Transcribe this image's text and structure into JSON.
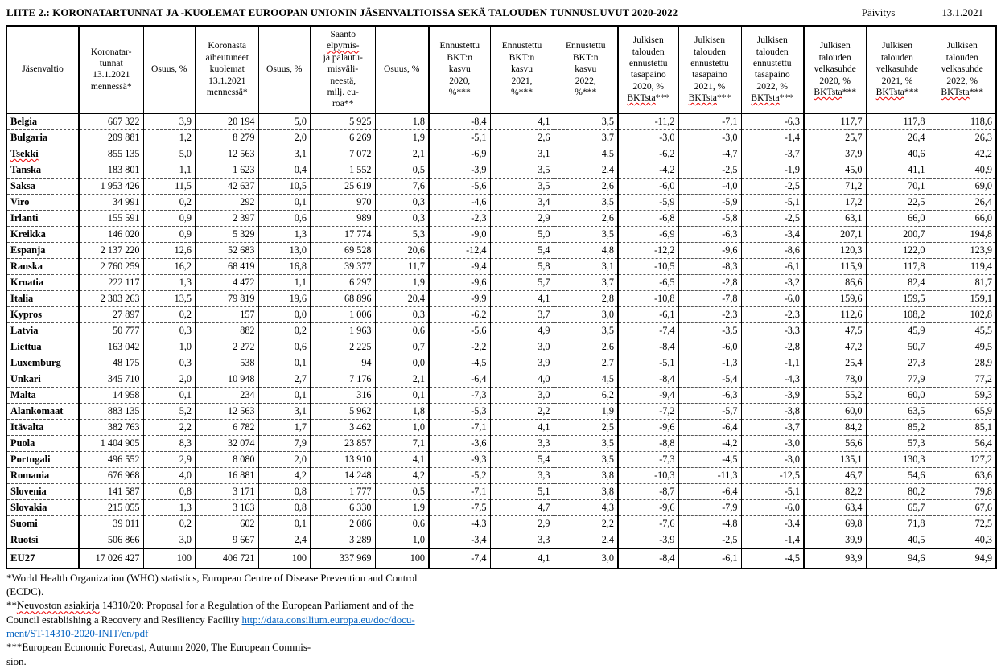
{
  "page": {
    "title": "LIITE 2.: KORONATARTUNNAT JA -KUOLEMAT EUROOPAN UNIONIN JÄSENVALTIOISSA SEKÄ TALOUDEN TUNNUSLUVUT 2020-2022",
    "update_label": "Päivitys",
    "update_date": "13.1.2021"
  },
  "table": {
    "headers": [
      [
        {
          "t": "Jäsenvaltio"
        }
      ],
      [
        {
          "t": "Koronatar-",
          "br": 1
        },
        {
          "t": "tunnat",
          "br": 1
        },
        {
          "t": "13.1.2021",
          "br": 1
        },
        {
          "t": "mennessä*"
        }
      ],
      [
        {
          "t": "Osuus, %"
        }
      ],
      [
        {
          "t": "Koronasta",
          "br": 1
        },
        {
          "t": "aiheutuneet",
          "br": 1
        },
        {
          "t": "kuolemat",
          "br": 1
        },
        {
          "t": "13.1.2021",
          "br": 1
        },
        {
          "t": "mennessä*"
        }
      ],
      [
        {
          "t": "Osuus, %"
        }
      ],
      [
        {
          "t": "Saanto",
          "br": 1
        },
        {
          "t": "elpymis-",
          "sq": 1,
          "br": 1
        },
        {
          "t": "ja palautu-",
          "br": 1
        },
        {
          "t": "misväli-",
          "br": 1
        },
        {
          "t": "neestä,",
          "br": 1
        },
        {
          "t": "milj. eu-",
          "br": 1
        },
        {
          "t": "roa**"
        }
      ],
      [
        {
          "t": "Osuus, %"
        }
      ],
      [
        {
          "t": "Ennustettu",
          "br": 1
        },
        {
          "t": "BKT:n",
          "br": 1
        },
        {
          "t": "kasvu",
          "br": 1
        },
        {
          "t": "2020,",
          "br": 1
        },
        {
          "t": "%***"
        }
      ],
      [
        {
          "t": "Ennustettu",
          "br": 1
        },
        {
          "t": "BKT:n",
          "br": 1
        },
        {
          "t": "kasvu",
          "br": 1
        },
        {
          "t": "2021,",
          "br": 1
        },
        {
          "t": "%***"
        }
      ],
      [
        {
          "t": "Ennustettu",
          "br": 1
        },
        {
          "t": "BKT:n",
          "br": 1
        },
        {
          "t": "kasvu",
          "br": 1
        },
        {
          "t": "2022,",
          "br": 1
        },
        {
          "t": "%***"
        }
      ],
      [
        {
          "t": "Julkisen",
          "br": 1
        },
        {
          "t": "talouden",
          "br": 1
        },
        {
          "t": "ennustettu",
          "br": 1
        },
        {
          "t": "tasapaino",
          "br": 1
        },
        {
          "t": "2020, %",
          "br": 1
        },
        {
          "t": "BKTsta",
          "sq": 1
        },
        {
          "t": "***"
        }
      ],
      [
        {
          "t": "Julkisen",
          "br": 1
        },
        {
          "t": "talouden",
          "br": 1
        },
        {
          "t": "ennustettu",
          "br": 1
        },
        {
          "t": "tasapaino",
          "br": 1
        },
        {
          "t": "2021, %",
          "br": 1
        },
        {
          "t": "BKTsta",
          "sq": 1
        },
        {
          "t": "***"
        }
      ],
      [
        {
          "t": "Julkisen",
          "br": 1
        },
        {
          "t": "talouden",
          "br": 1
        },
        {
          "t": "ennustettu",
          "br": 1
        },
        {
          "t": "tasapaino",
          "br": 1
        },
        {
          "t": "2022, %",
          "br": 1
        },
        {
          "t": "BKTsta",
          "sq": 1
        },
        {
          "t": "***"
        }
      ],
      [
        {
          "t": "Julkisen",
          "br": 1
        },
        {
          "t": "talouden",
          "br": 1
        },
        {
          "t": "velkasuhde",
          "br": 1
        },
        {
          "t": "2020, %",
          "br": 1
        },
        {
          "t": "BKTsta",
          "sq": 1
        },
        {
          "t": "***"
        }
      ],
      [
        {
          "t": "Julkisen",
          "br": 1
        },
        {
          "t": "talouden",
          "br": 1
        },
        {
          "t": "velkasuhde",
          "br": 1
        },
        {
          "t": "2021, %",
          "br": 1
        },
        {
          "t": "BKTsta",
          "sq": 1
        },
        {
          "t": "***"
        }
      ],
      [
        {
          "t": "Julkisen",
          "br": 1
        },
        {
          "t": "talouden",
          "br": 1
        },
        {
          "t": "velkasuhde",
          "br": 1
        },
        {
          "t": "2022, %",
          "br": 1
        },
        {
          "t": "BKTsta",
          "sq": 1
        },
        {
          "t": "***"
        }
      ]
    ],
    "rows": [
      {
        "name": "Belgia",
        "values": [
          "667 322",
          "3,9",
          "20 194",
          "5,0",
          "5 925",
          "1,8",
          "-8,4",
          "4,1",
          "3,5",
          "-11,2",
          "-7,1",
          "-6,3",
          "117,7",
          "117,8",
          "118,6"
        ]
      },
      {
        "name": "Bulgaria",
        "values": [
          "209 881",
          "1,2",
          "8 279",
          "2,0",
          "6 269",
          "1,9",
          "-5,1",
          "2,6",
          "3,7",
          "-3,0",
          "-3,0",
          "-1,4",
          "25,7",
          "26,4",
          "26,3"
        ]
      },
      {
        "name": "Tsekki",
        "sq": 1,
        "values": [
          "855 135",
          "5,0",
          "12 563",
          "3,1",
          "7 072",
          "2,1",
          "-6,9",
          "3,1",
          "4,5",
          "-6,2",
          "-4,7",
          "-3,7",
          "37,9",
          "40,6",
          "42,2"
        ]
      },
      {
        "name": "Tanska",
        "values": [
          "183 801",
          "1,1",
          "1 623",
          "0,4",
          "1 552",
          "0,5",
          "-3,9",
          "3,5",
          "2,4",
          "-4,2",
          "-2,5",
          "-1,9",
          "45,0",
          "41,1",
          "40,9"
        ]
      },
      {
        "name": "Saksa",
        "values": [
          "1 953 426",
          "11,5",
          "42 637",
          "10,5",
          "25 619",
          "7,6",
          "-5,6",
          "3,5",
          "2,6",
          "-6,0",
          "-4,0",
          "-2,5",
          "71,2",
          "70,1",
          "69,0"
        ]
      },
      {
        "name": "Viro",
        "values": [
          "34 991",
          "0,2",
          "292",
          "0,1",
          "970",
          "0,3",
          "-4,6",
          "3,4",
          "3,5",
          "-5,9",
          "-5,9",
          "-5,1",
          "17,2",
          "22,5",
          "26,4"
        ]
      },
      {
        "name": "Irlanti",
        "values": [
          "155 591",
          "0,9",
          "2 397",
          "0,6",
          "989",
          "0,3",
          "-2,3",
          "2,9",
          "2,6",
          "-6,8",
          "-5,8",
          "-2,5",
          "63,1",
          "66,0",
          "66,0"
        ]
      },
      {
        "name": "Kreikka",
        "values": [
          "146 020",
          "0,9",
          "5 329",
          "1,3",
          "17 774",
          "5,3",
          "-9,0",
          "5,0",
          "3,5",
          "-6,9",
          "-6,3",
          "-3,4",
          "207,1",
          "200,7",
          "194,8"
        ]
      },
      {
        "name": "Espanja",
        "values": [
          "2 137 220",
          "12,6",
          "52 683",
          "13,0",
          "69 528",
          "20,6",
          "-12,4",
          "5,4",
          "4,8",
          "-12,2",
          "-9,6",
          "-8,6",
          "120,3",
          "122,0",
          "123,9"
        ]
      },
      {
        "name": "Ranska",
        "values": [
          "2 760 259",
          "16,2",
          "68 419",
          "16,8",
          "39 377",
          "11,7",
          "-9,4",
          "5,8",
          "3,1",
          "-10,5",
          "-8,3",
          "-6,1",
          "115,9",
          "117,8",
          "119,4"
        ]
      },
      {
        "name": "Kroatia",
        "values": [
          "222 117",
          "1,3",
          "4 472",
          "1,1",
          "6 297",
          "1,9",
          "-9,6",
          "5,7",
          "3,7",
          "-6,5",
          "-2,8",
          "-3,2",
          "86,6",
          "82,4",
          "81,7"
        ]
      },
      {
        "name": "Italia",
        "values": [
          "2 303 263",
          "13,5",
          "79 819",
          "19,6",
          "68 896",
          "20,4",
          "-9,9",
          "4,1",
          "2,8",
          "-10,8",
          "-7,8",
          "-6,0",
          "159,6",
          "159,5",
          "159,1"
        ]
      },
      {
        "name": "Kypros",
        "values": [
          "27 897",
          "0,2",
          "157",
          "0,0",
          "1 006",
          "0,3",
          "-6,2",
          "3,7",
          "3,0",
          "-6,1",
          "-2,3",
          "-2,3",
          "112,6",
          "108,2",
          "102,8"
        ]
      },
      {
        "name": "Latvia",
        "values": [
          "50 777",
          "0,3",
          "882",
          "0,2",
          "1 963",
          "0,6",
          "-5,6",
          "4,9",
          "3,5",
          "-7,4",
          "-3,5",
          "-3,3",
          "47,5",
          "45,9",
          "45,5"
        ]
      },
      {
        "name": "Liettua",
        "values": [
          "163 042",
          "1,0",
          "2 272",
          "0,6",
          "2 225",
          "0,7",
          "-2,2",
          "3,0",
          "2,6",
          "-8,4",
          "-6,0",
          "-2,8",
          "47,2",
          "50,7",
          "49,5"
        ]
      },
      {
        "name": "Luxemburg",
        "values": [
          "48 175",
          "0,3",
          "538",
          "0,1",
          "94",
          "0,0",
          "-4,5",
          "3,9",
          "2,7",
          "-5,1",
          "-1,3",
          "-1,1",
          "25,4",
          "27,3",
          "28,9"
        ]
      },
      {
        "name": "Unkari",
        "values": [
          "345 710",
          "2,0",
          "10 948",
          "2,7",
          "7 176",
          "2,1",
          "-6,4",
          "4,0",
          "4,5",
          "-8,4",
          "-5,4",
          "-4,3",
          "78,0",
          "77,9",
          "77,2"
        ]
      },
      {
        "name": "Malta",
        "values": [
          "14 958",
          "0,1",
          "234",
          "0,1",
          "316",
          "0,1",
          "-7,3",
          "3,0",
          "6,2",
          "-9,4",
          "-6,3",
          "-3,9",
          "55,2",
          "60,0",
          "59,3"
        ]
      },
      {
        "name": "Alankomaat",
        "values": [
          "883 135",
          "5,2",
          "12 563",
          "3,1",
          "5 962",
          "1,8",
          "-5,3",
          "2,2",
          "1,9",
          "-7,2",
          "-5,7",
          "-3,8",
          "60,0",
          "63,5",
          "65,9"
        ]
      },
      {
        "name": "Itävalta",
        "values": [
          "382 763",
          "2,2",
          "6 782",
          "1,7",
          "3 462",
          "1,0",
          "-7,1",
          "4,1",
          "2,5",
          "-9,6",
          "-6,4",
          "-3,7",
          "84,2",
          "85,2",
          "85,1"
        ]
      },
      {
        "name": "Puola",
        "values": [
          "1 404 905",
          "8,3",
          "32 074",
          "7,9",
          "23 857",
          "7,1",
          "-3,6",
          "3,3",
          "3,5",
          "-8,8",
          "-4,2",
          "-3,0",
          "56,6",
          "57,3",
          "56,4"
        ]
      },
      {
        "name": "Portugali",
        "values": [
          "496 552",
          "2,9",
          "8 080",
          "2,0",
          "13 910",
          "4,1",
          "-9,3",
          "5,4",
          "3,5",
          "-7,3",
          "-4,5",
          "-3,0",
          "135,1",
          "130,3",
          "127,2"
        ]
      },
      {
        "name": "Romania",
        "values": [
          "676 968",
          "4,0",
          "16 881",
          "4,2",
          "14 248",
          "4,2",
          "-5,2",
          "3,3",
          "3,8",
          "-10,3",
          "-11,3",
          "-12,5",
          "46,7",
          "54,6",
          "63,6"
        ]
      },
      {
        "name": "Slovenia",
        "values": [
          "141 587",
          "0,8",
          "3 171",
          "0,8",
          "1 777",
          "0,5",
          "-7,1",
          "5,1",
          "3,8",
          "-8,7",
          "-6,4",
          "-5,1",
          "82,2",
          "80,2",
          "79,8"
        ]
      },
      {
        "name": "Slovakia",
        "values": [
          "215 055",
          "1,3",
          "3 163",
          "0,8",
          "6 330",
          "1,9",
          "-7,5",
          "4,7",
          "4,3",
          "-9,6",
          "-7,9",
          "-6,0",
          "63,4",
          "65,7",
          "67,6"
        ]
      },
      {
        "name": "Suomi",
        "values": [
          "39 011",
          "0,2",
          "602",
          "0,1",
          "2 086",
          "0,6",
          "-4,3",
          "2,9",
          "2,2",
          "-7,6",
          "-4,8",
          "-3,4",
          "69,8",
          "71,8",
          "72,5"
        ]
      },
      {
        "name": "Ruotsi",
        "values": [
          "506 866",
          "3,0",
          "9 667",
          "2,4",
          "3 289",
          "1,0",
          "-3,4",
          "3,3",
          "2,4",
          "-3,9",
          "-2,5",
          "-1,4",
          "39,9",
          "40,5",
          "40,3"
        ]
      }
    ],
    "total_row": {
      "name": "EU27",
      "total": 1,
      "values": [
        "17 026 427",
        "100",
        "406 721",
        "100",
        "337 969",
        "100",
        "-7,4",
        "4,1",
        "3,0",
        "-8,4",
        "-6,1",
        "-4,5",
        "93,9",
        "94,6",
        "94,9"
      ]
    }
  },
  "footnotes": [
    [
      {
        "t": "*World Health Organization (WHO) statistics, European Centre of Disease Prevention and Control"
      }
    ],
    [
      {
        "t": "(ECDC)."
      }
    ],
    [
      {
        "t": "**"
      },
      {
        "t": "Neuvoston asiakirja",
        "sq": 1
      },
      {
        "t": " 14310/20: Proposal for a Regulation of the European Parliament and of the"
      }
    ],
    [
      {
        "t": "Council establishing a Recovery and Resiliency Facility "
      },
      {
        "t": "http://data.consilium.europa.eu/doc/docu-",
        "link": 1
      }
    ],
    [
      {
        "t": "ment/ST-14310-2020-INIT/en/pdf",
        "link": 1
      }
    ],
    [
      {
        "t": "***European Economic Forecast, Autumn 2020, The European Commis-"
      }
    ],
    [
      {
        "t": "sion."
      }
    ]
  ]
}
